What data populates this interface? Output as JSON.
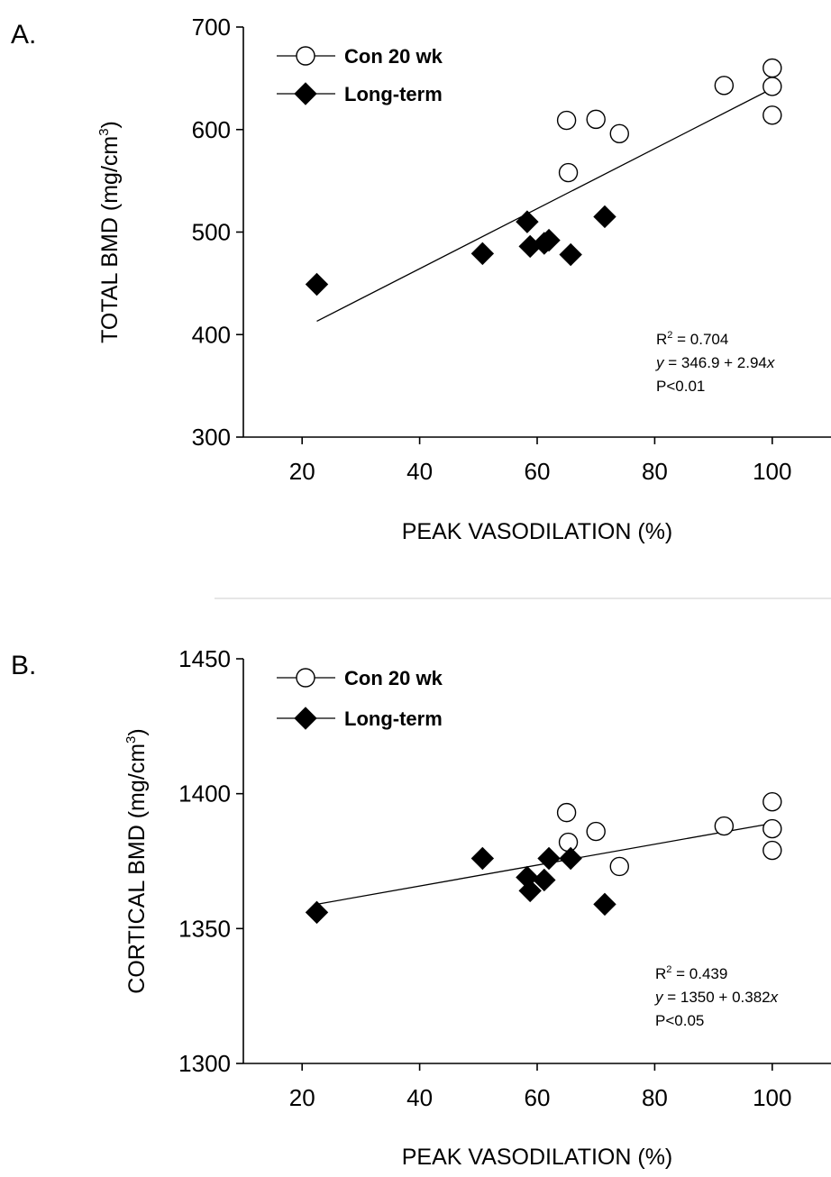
{
  "chart_data": [
    {
      "type": "scatter",
      "panel_label": "A.",
      "xlabel": "PEAK VASODILATION (%)",
      "ylabel": "TOTAL BMD (mg/cm",
      "ylabel_sup": "3",
      "ylabel_end": ")",
      "xlim": [
        10,
        110
      ],
      "ylim": [
        300,
        700
      ],
      "xticks": [
        20,
        40,
        60,
        80,
        100
      ],
      "yticks": [
        300,
        400,
        500,
        600,
        700
      ],
      "series": [
        {
          "name": "Con 20 wk",
          "marker": "open-circle",
          "points": [
            [
              65.0,
              609
            ],
            [
              70.0,
              610
            ],
            [
              74.0,
              596
            ],
            [
              65.3,
              558
            ],
            [
              91.8,
              643
            ],
            [
              100.0,
              660
            ],
            [
              100.0,
              642
            ],
            [
              100.0,
              614
            ]
          ]
        },
        {
          "name": "Long-term",
          "marker": "filled-diamond",
          "points": [
            [
              22.5,
              449
            ],
            [
              50.7,
              479
            ],
            [
              58.3,
              510
            ],
            [
              58.8,
              486
            ],
            [
              61.2,
              489
            ],
            [
              62.0,
              492
            ],
            [
              65.7,
              478
            ],
            [
              71.5,
              515
            ]
          ]
        }
      ],
      "fit_line": {
        "x": [
          22.5,
          100
        ],
        "y": [
          413,
          640
        ]
      },
      "stats": {
        "r2_prefix": "R",
        "r2_sup": "2",
        "r2_value": " = 0.704",
        "eq_y": "y",
        "eq_mid": " = 346.9 + 2.94",
        "eq_x": "x",
        "p_value": "P<0.01"
      }
    },
    {
      "type": "scatter",
      "panel_label": "B.",
      "xlabel": "PEAK VASODILATION (%)",
      "ylabel": "CORTICAL BMD (mg/cm",
      "ylabel_sup": "3",
      "ylabel_end": ")",
      "xlim": [
        10,
        110
      ],
      "ylim": [
        1300,
        1450
      ],
      "xticks": [
        20,
        40,
        60,
        80,
        100
      ],
      "yticks": [
        1300,
        1350,
        1400,
        1450
      ],
      "series": [
        {
          "name": "Con 20 wk",
          "marker": "open-circle",
          "points": [
            [
              65.0,
              1393
            ],
            [
              65.3,
              1382
            ],
            [
              70.0,
              1386
            ],
            [
              74.0,
              1373
            ],
            [
              91.8,
              1388
            ],
            [
              100.0,
              1397
            ],
            [
              100.0,
              1387
            ],
            [
              100.0,
              1379
            ]
          ]
        },
        {
          "name": "Long-term",
          "marker": "filled-diamond",
          "points": [
            [
              22.5,
              1356
            ],
            [
              50.7,
              1376
            ],
            [
              58.3,
              1369
            ],
            [
              58.8,
              1364
            ],
            [
              61.2,
              1368
            ],
            [
              62.0,
              1376
            ],
            [
              65.7,
              1376
            ],
            [
              71.5,
              1359
            ]
          ]
        }
      ],
      "fit_line": {
        "x": [
          22.5,
          100
        ],
        "y": [
          1359,
          1389
        ]
      },
      "stats": {
        "r2_prefix": "R",
        "r2_sup": "2",
        "r2_value": " = 0.439",
        "eq_y": "y",
        "eq_mid": " = 1350  + 0.382",
        "eq_x": "x",
        "p_value": "P<0.05"
      }
    }
  ]
}
